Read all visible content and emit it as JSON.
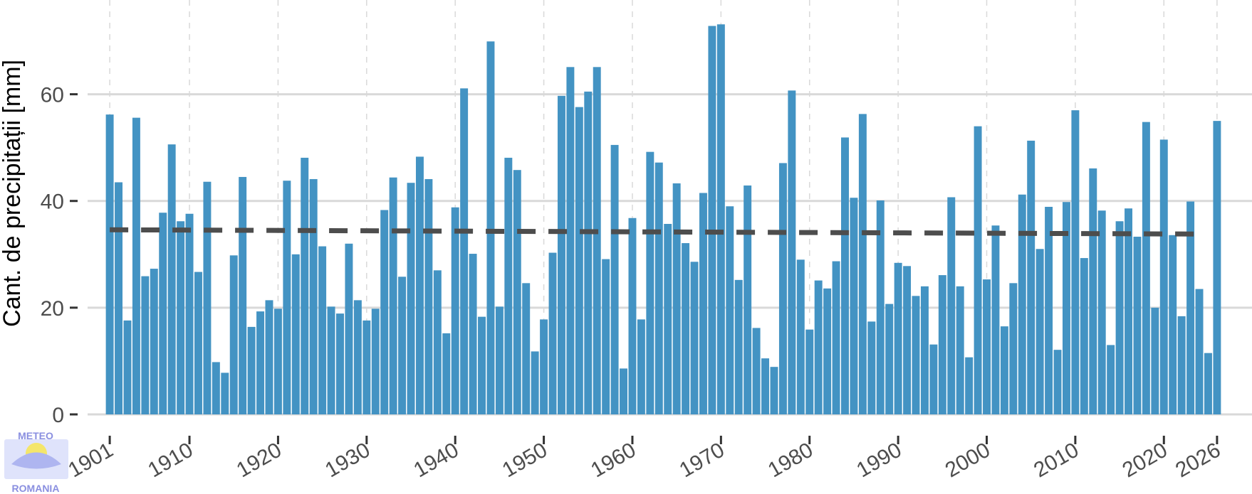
{
  "logo": {
    "top_text": "METEO",
    "bottom_text": "ROMANIA"
  },
  "chart_data": {
    "type": "bar",
    "ylabel": "Cant. de precipitații [mm]",
    "xlabel": "",
    "ylim": [
      0,
      75
    ],
    "xlim": [
      1898.5,
      2028.5
    ],
    "yticks": [
      0,
      20,
      40,
      60
    ],
    "xticks": [
      1901,
      1910,
      1920,
      1930,
      1940,
      1950,
      1960,
      1970,
      1980,
      1990,
      2000,
      2010,
      2020,
      2026
    ],
    "grid": {
      "horizontal": "solid",
      "vertical": "dashed"
    },
    "bar_color": "#4393c3",
    "trend_color": "#4d4d4d",
    "years_start": 1901,
    "years_end": 2026,
    "values": [
      56.2,
      43.5,
      17.6,
      55.6,
      25.9,
      27.3,
      37.8,
      50.6,
      36.2,
      37.6,
      26.7,
      43.6,
      9.8,
      7.8,
      29.8,
      44.5,
      16.4,
      19.3,
      21.4,
      19.8,
      43.8,
      30.0,
      48.1,
      44.1,
      31.5,
      20.2,
      18.9,
      32.0,
      21.4,
      17.6,
      19.8,
      38.3,
      44.4,
      25.8,
      43.4,
      48.3,
      44.1,
      27.0,
      15.2,
      38.8,
      61.1,
      30.1,
      18.3,
      69.9,
      20.2,
      48.1,
      45.8,
      24.6,
      11.8,
      17.8,
      30.3,
      59.7,
      65.1,
      57.6,
      60.5,
      65.1,
      29.1,
      50.5,
      8.6,
      36.8,
      17.8,
      49.2,
      47.2,
      35.7,
      43.3,
      32.1,
      28.6,
      41.5,
      72.8,
      73.1,
      39.0,
      25.2,
      42.9,
      16.2,
      10.5,
      8.9,
      47.1,
      60.7,
      29.0,
      15.9,
      25.1,
      23.6,
      28.7,
      51.9,
      40.6,
      56.3,
      17.4,
      40.1,
      20.7,
      28.4,
      27.8,
      22.2,
      24.0,
      13.1,
      26.1,
      40.7,
      24.0,
      10.7,
      54.0,
      25.3,
      35.4,
      16.5,
      24.6,
      41.2,
      51.3,
      31.0,
      38.9,
      12.1,
      39.8,
      57.0,
      29.3,
      46.1,
      38.2,
      13.0,
      36.2,
      38.6,
      33.3,
      54.8,
      20.0,
      51.5,
      33.6,
      18.4,
      39.9,
      23.5,
      11.5,
      55.0
    ],
    "trend": {
      "start_year": 1901,
      "end_year": 2024,
      "start_value": 34.6,
      "end_value": 33.8
    }
  }
}
